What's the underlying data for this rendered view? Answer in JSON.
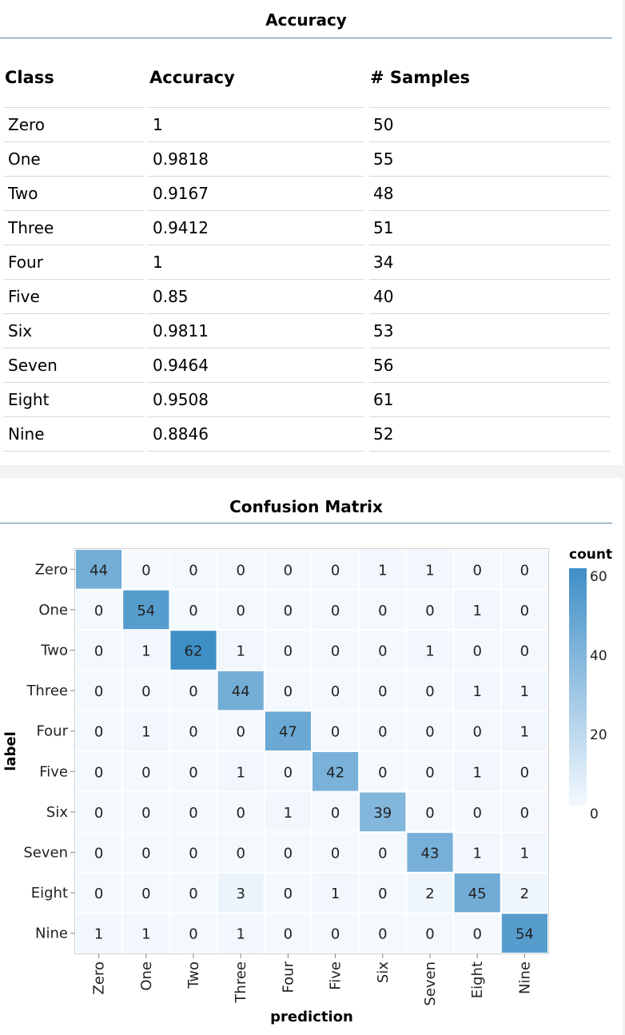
{
  "accuracy_table": {
    "title": "Accuracy",
    "columns": [
      "Class",
      "Accuracy",
      "# Samples"
    ],
    "rows": [
      {
        "class": "Zero",
        "accuracy": "1",
        "samples": "50"
      },
      {
        "class": "One",
        "accuracy": "0.9818",
        "samples": "55"
      },
      {
        "class": "Two",
        "accuracy": "0.9167",
        "samples": "48"
      },
      {
        "class": "Three",
        "accuracy": "0.9412",
        "samples": "51"
      },
      {
        "class": "Four",
        "accuracy": "1",
        "samples": "34"
      },
      {
        "class": "Five",
        "accuracy": "0.85",
        "samples": "40"
      },
      {
        "class": "Six",
        "accuracy": "0.9811",
        "samples": "53"
      },
      {
        "class": "Seven",
        "accuracy": "0.9464",
        "samples": "56"
      },
      {
        "class": "Eight",
        "accuracy": "0.9508",
        "samples": "61"
      },
      {
        "class": "Nine",
        "accuracy": "0.8846",
        "samples": "52"
      }
    ]
  },
  "chart_data": {
    "type": "heatmap",
    "title": "Confusion Matrix",
    "xlabel": "prediction",
    "ylabel": "label",
    "x_categories": [
      "Zero",
      "One",
      "Two",
      "Three",
      "Four",
      "Five",
      "Six",
      "Seven",
      "Eight",
      "Nine"
    ],
    "y_categories": [
      "Zero",
      "One",
      "Two",
      "Three",
      "Four",
      "Five",
      "Six",
      "Seven",
      "Eight",
      "Nine"
    ],
    "values": [
      [
        44,
        0,
        0,
        0,
        0,
        0,
        1,
        1,
        0,
        0
      ],
      [
        0,
        54,
        0,
        0,
        0,
        0,
        0,
        0,
        1,
        0
      ],
      [
        0,
        1,
        62,
        1,
        0,
        0,
        0,
        1,
        0,
        0
      ],
      [
        0,
        0,
        0,
        44,
        0,
        0,
        0,
        0,
        1,
        1
      ],
      [
        0,
        1,
        0,
        0,
        47,
        0,
        0,
        0,
        0,
        1
      ],
      [
        0,
        0,
        0,
        1,
        0,
        42,
        0,
        0,
        1,
        0
      ],
      [
        0,
        0,
        0,
        0,
        1,
        0,
        39,
        0,
        0,
        0
      ],
      [
        0,
        0,
        0,
        0,
        0,
        0,
        0,
        43,
        1,
        1
      ],
      [
        0,
        0,
        0,
        3,
        0,
        1,
        0,
        2,
        45,
        2
      ],
      [
        1,
        1,
        0,
        1,
        0,
        0,
        0,
        0,
        0,
        54
      ]
    ],
    "legend": {
      "title": "count",
      "ticks": [
        60,
        40,
        20,
        0
      ],
      "domain": [
        0,
        62
      ],
      "position": "right"
    },
    "colors": {
      "low": "#f4f9fe",
      "high": "#3f8fc7",
      "text": "#222222"
    }
  }
}
